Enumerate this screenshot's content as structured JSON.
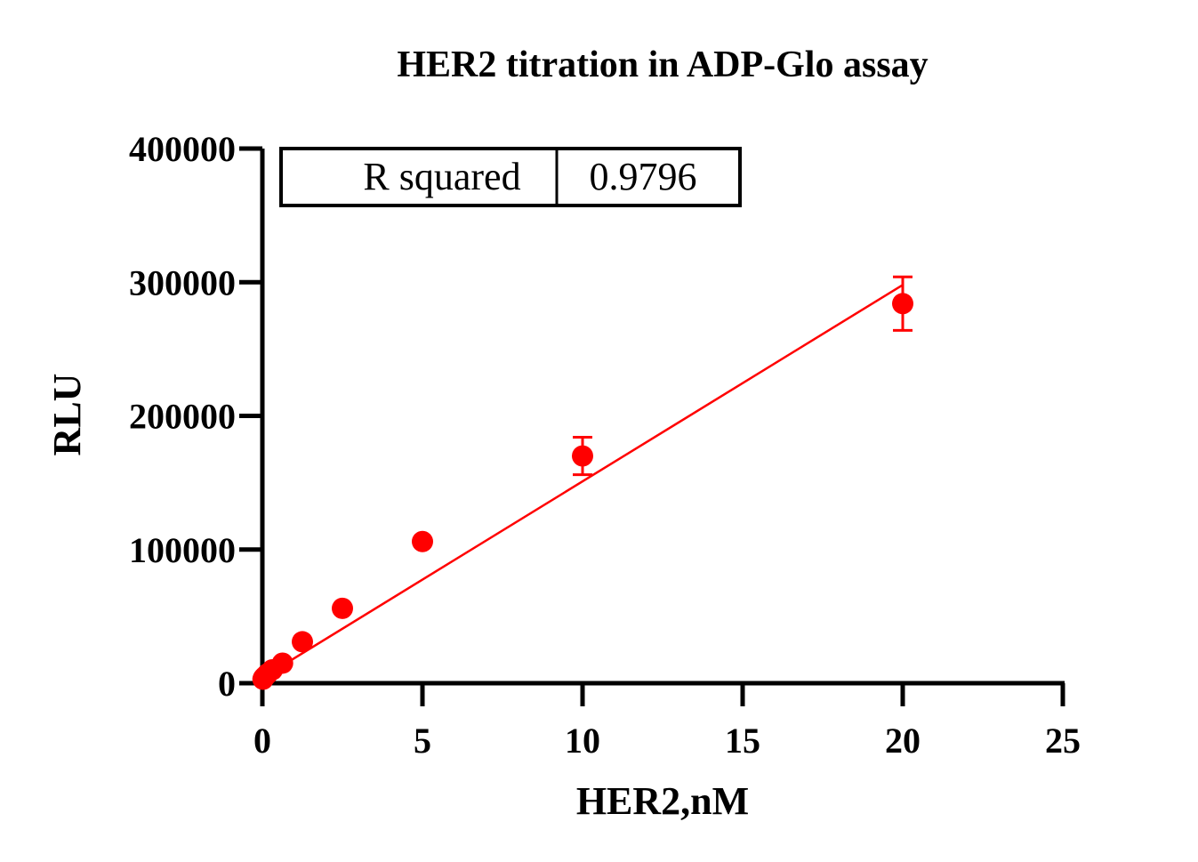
{
  "chart_data": {
    "type": "scatter",
    "title": "HER2 titration in  ADP-Glo assay",
    "xlabel": "HER2,nM",
    "ylabel": "RLU",
    "xlim": [
      0,
      25
    ],
    "ylim": [
      0,
      400000
    ],
    "x_ticks": [
      0,
      5,
      10,
      15,
      20,
      25
    ],
    "y_ticks": [
      0,
      100000,
      200000,
      300000,
      400000
    ],
    "x_tick_labels": [
      "0",
      "5",
      "10",
      "15",
      "20",
      "25"
    ],
    "y_tick_labels": [
      "0",
      "100000",
      "200000",
      "300000",
      "400000"
    ],
    "grid": false,
    "point_color": "#ff0000",
    "series": [
      {
        "x": [
          0.02,
          0.04,
          0.08,
          0.16,
          0.31,
          0.63,
          1.25,
          2.5,
          5,
          10,
          20
        ],
        "y": [
          3000,
          4000,
          5000,
          7000,
          10000,
          15000,
          31000,
          56000,
          106000,
          170000,
          284000
        ],
        "y_error": [
          0,
          0,
          0,
          0,
          0,
          0,
          0,
          0,
          0,
          14000,
          20000
        ]
      }
    ],
    "fit_line": {
      "x": [
        0,
        20
      ],
      "y": [
        4000,
        298000
      ]
    },
    "stats_table": {
      "label": "R squared",
      "value": "0.9796"
    }
  }
}
